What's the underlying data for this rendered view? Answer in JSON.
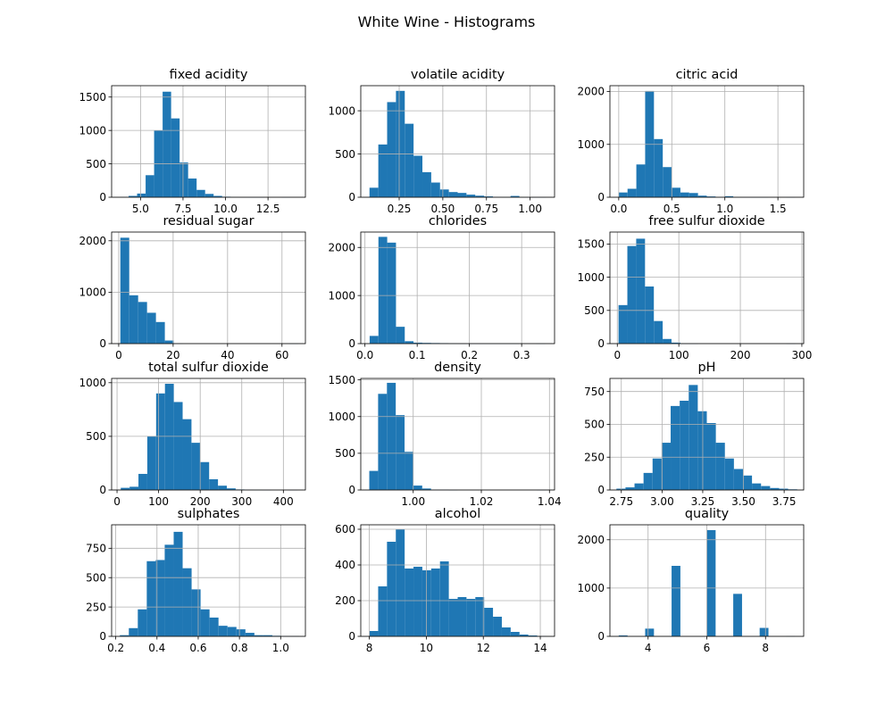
{
  "figure": {
    "title": "White Wine - Histograms"
  },
  "colors": {
    "bar": "#1f77b4",
    "grid": "#b0b0b0",
    "axis": "#000000"
  },
  "chart_data": [
    {
      "type": "bar",
      "title": "fixed acidity",
      "grid": true,
      "xlim": [
        3.3,
        14.7
      ],
      "ylim": [
        0,
        1670
      ],
      "xticks": [
        5,
        7.5,
        10,
        12.5
      ],
      "xtick_labels": [
        "5.0",
        "7.5",
        "10.0",
        "12.5"
      ],
      "yticks": [
        0,
        500,
        1000,
        1500
      ],
      "ytick_labels": [
        "0",
        "500",
        "1000",
        "1500"
      ],
      "bin_start": 3.8,
      "bin_width": 0.5,
      "values": [
        5,
        20,
        55,
        330,
        1000,
        1580,
        1180,
        520,
        280,
        110,
        50,
        20,
        8,
        4,
        2,
        1,
        1,
        0,
        0,
        1
      ]
    },
    {
      "type": "bar",
      "title": "volatile acidity",
      "grid": true,
      "xlim": [
        0.03,
        1.14
      ],
      "ylim": [
        0,
        1290
      ],
      "xticks": [
        0.25,
        0.5,
        0.75,
        1.0
      ],
      "xtick_labels": [
        "0.25",
        "0.50",
        "0.75",
        "1.00"
      ],
      "yticks": [
        0,
        500,
        1000
      ],
      "ytick_labels": [
        "0",
        "500",
        "1000"
      ],
      "bin_start": 0.08,
      "bin_width": 0.0505,
      "values": [
        110,
        610,
        1100,
        1230,
        850,
        480,
        290,
        170,
        90,
        60,
        50,
        30,
        18,
        10,
        5,
        3,
        15,
        2,
        1,
        1
      ]
    },
    {
      "type": "bar",
      "title": "citric acid",
      "grid": true,
      "xlim": [
        -0.083,
        1.743
      ],
      "ylim": [
        0,
        2110
      ],
      "xticks": [
        0,
        0.5,
        1.0,
        1.5
      ],
      "xtick_labels": [
        "0.0",
        "0.5",
        "1.0",
        "1.5"
      ],
      "yticks": [
        0,
        1000,
        2000
      ],
      "ytick_labels": [
        "0",
        "1000",
        "2000"
      ],
      "bin_start": 0.0,
      "bin_width": 0.083,
      "values": [
        90,
        160,
        620,
        2010,
        1100,
        570,
        180,
        90,
        80,
        30,
        15,
        5,
        20,
        3,
        2,
        1,
        1,
        0,
        0,
        1
      ]
    },
    {
      "type": "bar",
      "title": "residual sugar",
      "grid": true,
      "xlim": [
        -2.6,
        68.6
      ],
      "ylim": [
        0,
        2170
      ],
      "xticks": [
        0,
        20,
        40,
        60
      ],
      "xtick_labels": [
        "0",
        "20",
        "40",
        "60"
      ],
      "yticks": [
        0,
        1000,
        2000
      ],
      "ytick_labels": [
        "0",
        "1000",
        "2000"
      ],
      "bin_start": 0.6,
      "bin_width": 3.27,
      "values": [
        2060,
        940,
        810,
        600,
        420,
        60,
        3,
        0,
        0,
        0,
        0,
        0,
        0,
        0,
        0,
        0,
        0,
        0,
        0,
        1
      ]
    },
    {
      "type": "bar",
      "title": "chlorides",
      "grid": true,
      "xlim": [
        -0.008,
        0.363
      ],
      "ylim": [
        0,
        2320
      ],
      "xticks": [
        0,
        0.1,
        0.2,
        0.3
      ],
      "xtick_labels": [
        "0.0",
        "0.1",
        "0.2",
        "0.3"
      ],
      "yticks": [
        0,
        1000,
        2000
      ],
      "ytick_labels": [
        "0",
        "1000",
        "2000"
      ],
      "bin_start": 0.009,
      "bin_width": 0.0168,
      "values": [
        160,
        2220,
        2100,
        350,
        50,
        20,
        15,
        12,
        10,
        5,
        3,
        2,
        2,
        1,
        1,
        1,
        1,
        0,
        0,
        1
      ]
    },
    {
      "type": "bar",
      "title": "free sulfur dioxide",
      "grid": true,
      "xlim": [
        -12,
        303
      ],
      "ylim": [
        0,
        1680
      ],
      "xticks": [
        0,
        100,
        200,
        300
      ],
      "xtick_labels": [
        "0",
        "100",
        "200",
        "300"
      ],
      "yticks": [
        0,
        500,
        1000,
        1500
      ],
      "ytick_labels": [
        "0",
        "500",
        "1000",
        "1500"
      ],
      "bin_start": 2.0,
      "bin_width": 14.35,
      "values": [
        580,
        1470,
        1580,
        860,
        340,
        70,
        15,
        2,
        1,
        0,
        0,
        0,
        0,
        0,
        0,
        0,
        0,
        0,
        0,
        1
      ]
    },
    {
      "type": "bar",
      "title": "total sulfur dioxide",
      "grid": true,
      "xlim": [
        -13,
        453
      ],
      "ylim": [
        0,
        1040
      ],
      "xticks": [
        0,
        100,
        200,
        300,
        400
      ],
      "xtick_labels": [
        "0",
        "100",
        "200",
        "300",
        "400"
      ],
      "yticks": [
        0,
        500,
        1000
      ],
      "ytick_labels": [
        "0",
        "500",
        "1000"
      ],
      "bin_start": 9.0,
      "bin_width": 21.25,
      "values": [
        20,
        30,
        150,
        500,
        900,
        990,
        820,
        660,
        440,
        260,
        100,
        40,
        15,
        5,
        3,
        2,
        1,
        0,
        0,
        1
      ]
    },
    {
      "type": "bar",
      "title": "density",
      "grid": true,
      "xlim": [
        0.9846,
        1.0415
      ],
      "ylim": [
        0,
        1520
      ],
      "xticks": [
        1.0,
        1.02,
        1.04
      ],
      "xtick_labels": [
        "1.00",
        "1.02",
        "1.04"
      ],
      "yticks": [
        0,
        500,
        1000,
        1500
      ],
      "ytick_labels": [
        "0",
        "500",
        "1000",
        "1500"
      ],
      "bin_start": 0.9871,
      "bin_width": 0.00259,
      "values": [
        260,
        1310,
        1460,
        1020,
        520,
        60,
        20,
        5,
        5,
        1,
        0,
        0,
        0,
        0,
        0,
        0,
        0,
        0,
        0,
        1
      ]
    },
    {
      "type": "bar",
      "title": "pH",
      "grid": true,
      "xlim": [
        2.68,
        3.87
      ],
      "ylim": [
        0,
        850
      ],
      "xticks": [
        2.75,
        3.0,
        3.25,
        3.5,
        3.75
      ],
      "xtick_labels": [
        "2.75",
        "3.00",
        "3.25",
        "3.50",
        "3.75"
      ],
      "yticks": [
        0,
        250,
        500,
        750
      ],
      "ytick_labels": [
        "0",
        "250",
        "500",
        "750"
      ],
      "bin_start": 2.72,
      "bin_width": 0.0555,
      "values": [
        10,
        20,
        50,
        130,
        240,
        360,
        640,
        680,
        800,
        600,
        510,
        360,
        240,
        160,
        110,
        50,
        30,
        15,
        10,
        5
      ]
    },
    {
      "type": "bar",
      "title": "sulphates",
      "grid": true,
      "xlim": [
        0.18,
        1.12
      ],
      "ylim": [
        0,
        950
      ],
      "xticks": [
        0.2,
        0.4,
        0.6,
        0.8,
        1.0
      ],
      "xtick_labels": [
        "0.2",
        "0.4",
        "0.6",
        "0.8",
        "1.0"
      ],
      "yticks": [
        0,
        250,
        500,
        750
      ],
      "ytick_labels": [
        "0",
        "250",
        "500",
        "750"
      ],
      "bin_start": 0.22,
      "bin_width": 0.0435,
      "values": [
        10,
        70,
        230,
        640,
        650,
        780,
        890,
        580,
        400,
        230,
        160,
        90,
        80,
        60,
        30,
        10,
        10,
        5,
        3,
        3
      ]
    },
    {
      "type": "bar",
      "title": "alcohol",
      "grid": true,
      "xlim": [
        7.7,
        14.5
      ],
      "ylim": [
        0,
        625
      ],
      "xticks": [
        8,
        10,
        12,
        14
      ],
      "xtick_labels": [
        "8",
        "10",
        "12",
        "14"
      ],
      "yticks": [
        0,
        200,
        400,
        600
      ],
      "ytick_labels": [
        "0",
        "200",
        "400",
        "600"
      ],
      "bin_start": 8.0,
      "bin_width": 0.31,
      "values": [
        30,
        280,
        530,
        600,
        380,
        390,
        370,
        380,
        420,
        210,
        220,
        210,
        220,
        160,
        110,
        50,
        25,
        10,
        5,
        2
      ]
    },
    {
      "type": "bar",
      "title": "quality",
      "grid": true,
      "xlim": [
        2.7,
        9.3
      ],
      "ylim": [
        0,
        2310
      ],
      "xticks": [
        4,
        6,
        8
      ],
      "xtick_labels": [
        "4",
        "6",
        "8"
      ],
      "yticks": [
        0,
        1000,
        2000
      ],
      "ytick_labels": [
        "0",
        "1000",
        "2000"
      ],
      "bin_start": 3.0,
      "bin_width": 0.3,
      "values": [
        20,
        0,
        0,
        160,
        0,
        0,
        1460,
        0,
        0,
        0,
        2200,
        0,
        0,
        880,
        0,
        0,
        175,
        0,
        0,
        5
      ]
    }
  ]
}
